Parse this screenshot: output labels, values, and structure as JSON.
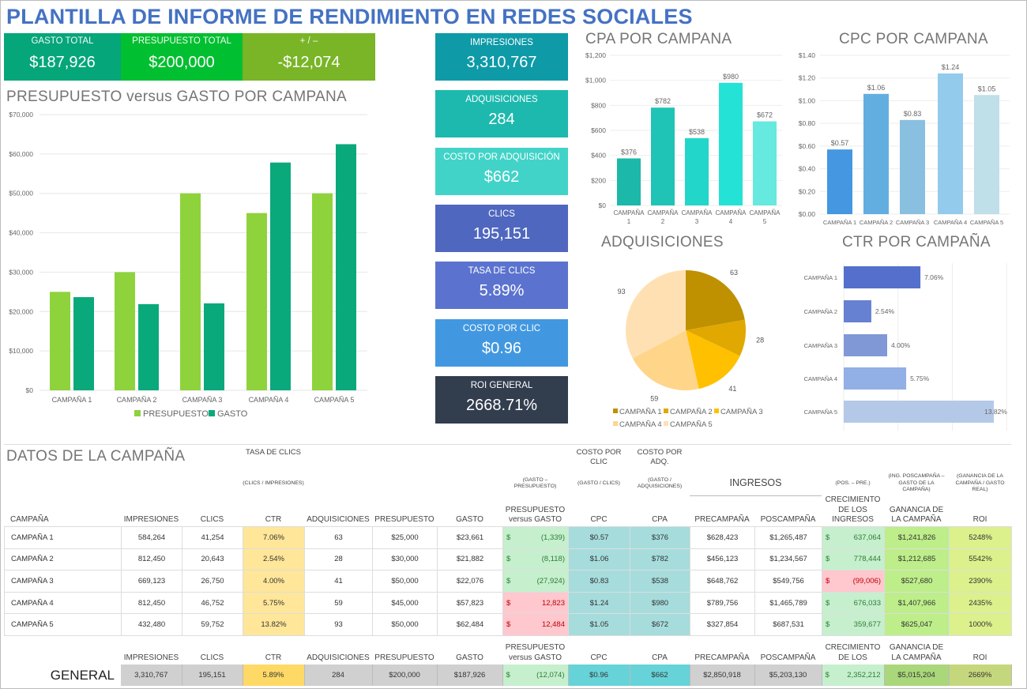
{
  "title": "PLANTILLA DE INFORME DE RENDIMIENTO EN REDES SOCIALES",
  "summary": [
    {
      "label": "GASTO TOTAL",
      "value": "$187,926",
      "color": "#05a67a"
    },
    {
      "label": "PRESUPUESTO TOTAL",
      "value": "$200,000",
      "color": "#00bf30"
    },
    {
      "label": "+ / –",
      "value": "-$12,074",
      "color": "#79b527"
    }
  ],
  "metrics": [
    {
      "label": "IMPRESIONES",
      "value": "3,310,767",
      "color": "#0e9aa7"
    },
    {
      "label": "ADQUISICIONES",
      "value": "284",
      "color": "#1db9ae"
    },
    {
      "label": "COSTO POR ADQUISICIÓN",
      "value": "$662",
      "color": "#42d3c8"
    },
    {
      "label": "CLICS",
      "value": "195,151",
      "color": "#4f67bf"
    },
    {
      "label": "TASA DE CLICS",
      "value": "5.89%",
      "color": "#5b73cf"
    },
    {
      "label": "COSTO POR CLIC",
      "value": "$0.96",
      "color": "#4298e0"
    },
    {
      "label": "ROI GENERAL",
      "value": "2668.71%",
      "color": "#323d4e"
    }
  ],
  "chart_data": [
    {
      "type": "bar",
      "title": "PRESUPUESTO versus GASTO POR CAMPANA",
      "categories": [
        "CAMPAÑA 1",
        "CAMPAÑA 2",
        "CAMPAÑA 3",
        "CAMPAÑA 4",
        "CAMPAÑA 5"
      ],
      "series": [
        {
          "name": "PRESUPUESTO",
          "values": [
            25000,
            30000,
            50000,
            45000,
            50000
          ],
          "color": "#8ed33c"
        },
        {
          "name": "GASTO",
          "values": [
            23661,
            21882,
            22076,
            57823,
            62484
          ],
          "color": "#0aa97b"
        }
      ],
      "ylim": [
        0,
        70000
      ],
      "yticks": [
        "$0",
        "$10,000",
        "$20,000",
        "$30,000",
        "$40,000",
        "$50,000",
        "$60,000",
        "$70,000"
      ],
      "grid": true,
      "legend": "bottom"
    },
    {
      "type": "bar",
      "title": "CPA POR CAMPANA",
      "categories": [
        "CAMPAÑA 1",
        "CAMPAÑA 2",
        "CAMPAÑA 3",
        "CAMPAÑA 4",
        "CAMPAÑA 5"
      ],
      "values": [
        376,
        782,
        538,
        980,
        672
      ],
      "labels": [
        "$376",
        "$782",
        "$538",
        "$980",
        "$672"
      ],
      "colors": [
        "#1cb8aa",
        "#1fc4b6",
        "#22d6c9",
        "#25e2d6",
        "#66e9de"
      ],
      "ylim": [
        0,
        1200
      ],
      "yticks": [
        "$0",
        "$200",
        "$400",
        "$600",
        "$800",
        "$1,000",
        "$1,200"
      ],
      "grid": true
    },
    {
      "type": "bar",
      "title": "CPC POR CAMPANA",
      "categories": [
        "CAMPAÑA 1",
        "CAMPAÑA 2",
        "CAMPAÑA 3",
        "CAMPAÑA 4",
        "CAMPAÑA 5"
      ],
      "values": [
        0.57,
        1.06,
        0.83,
        1.24,
        1.05
      ],
      "labels": [
        "$0.57",
        "$1.06",
        "$0.83",
        "$1.24",
        "$1.05"
      ],
      "colors": [
        "#4497e0",
        "#63aee0",
        "#89c0e0",
        "#93cbed",
        "#bfdfe9"
      ],
      "ylim": [
        0,
        1.4
      ],
      "yticks": [
        "$0.00",
        "$0.20",
        "$0.40",
        "$0.60",
        "$0.80",
        "$1.00",
        "$1.20",
        "$1.40"
      ],
      "grid": true
    },
    {
      "type": "pie",
      "title": "ADQUISICIONES",
      "categories": [
        "CAMPAÑA 1",
        "CAMPAÑA 2",
        "CAMPAÑA 3",
        "CAMPAÑA 4",
        "CAMPAÑA 5"
      ],
      "values": [
        63,
        28,
        41,
        59,
        93
      ],
      "colors": [
        "#bf9000",
        "#e0a800",
        "#ffc000",
        "#ffd58a",
        "#ffe0b3"
      ],
      "legend": "bottom"
    },
    {
      "type": "bar",
      "orientation": "horizontal",
      "title": "CTR POR CAMPAÑA",
      "categories": [
        "CAMPAÑA 1",
        "CAMPAÑA 2",
        "CAMPAÑA 3",
        "CAMPAÑA 4",
        "CAMPAÑA 5"
      ],
      "values": [
        7.06,
        2.54,
        4.0,
        5.75,
        13.82
      ],
      "labels": [
        "7.06%",
        "2.54%",
        "4.00%",
        "5.75%",
        "13.82%"
      ],
      "colors": [
        "#5470cc",
        "#6680d2",
        "#8099d6",
        "#92afe6",
        "#b4c9e8"
      ],
      "xlim": [
        0,
        15
      ],
      "grid": true
    }
  ],
  "table": {
    "section_title": "DATOS DE LA CAMPAÑA",
    "ingresos_label": "INGRESOS",
    "columns": [
      {
        "top": "",
        "note": "",
        "head": "CAMPAÑA"
      },
      {
        "top": "",
        "note": "",
        "head": "IMPRESIONES"
      },
      {
        "top": "",
        "note": "",
        "head": "CLICS"
      },
      {
        "top": "TASA DE CLICS",
        "note": "(CLICS / IMPRESIONES)",
        "head": "CTR"
      },
      {
        "top": "",
        "note": "",
        "head": "ADQUISICIONES"
      },
      {
        "top": "",
        "note": "",
        "head": "PRESUPUESTO"
      },
      {
        "top": "",
        "note": "",
        "head": "GASTO"
      },
      {
        "top": "",
        "note": "(GASTO – PRESUPUESTO)",
        "head": "PRESUPUESTO versus GASTO"
      },
      {
        "top": "COSTO POR CLIC",
        "note": "(GASTO / CLICS)",
        "head": "CPC"
      },
      {
        "top": "COSTO POR ADQ.",
        "note": "(GASTO / ADQUISICIONES)",
        "head": "CPA"
      },
      {
        "top": "",
        "note": "",
        "head": "PRECAMPAÑA"
      },
      {
        "top": "",
        "note": "",
        "head": "POSCAMPAÑA"
      },
      {
        "top": "",
        "note": "(POS. – PRE.)",
        "head": "CRECIMIENTO DE LOS INGRESOS"
      },
      {
        "top": "",
        "note": "(ING. POSCAMPAÑA – GASTO DE LA CAMPAÑA)",
        "head": "GANANCIA DE LA CAMPAÑA"
      },
      {
        "top": "",
        "note": "(GANANCIA DE LA CAMPAÑA / GASTO REAL)",
        "head": "ROI"
      }
    ],
    "rows": [
      [
        "CAMPAÑA 1",
        "584,264",
        "41,254",
        "7.06%",
        "63",
        "$25,000",
        "$23,661",
        {
          "sym": "$",
          "val": "(1,339)"
        },
        "$0.57",
        "$376",
        "$628,423",
        "$1,265,487",
        {
          "sym": "$",
          "val": "637,064"
        },
        "$1,241,826",
        "5248%"
      ],
      [
        "CAMPAÑA 2",
        "812,450",
        "20,643",
        "2.54%",
        "28",
        "$30,000",
        "$21,882",
        {
          "sym": "$",
          "val": "(8,118)"
        },
        "$1.06",
        "$782",
        "$456,123",
        "$1,234,567",
        {
          "sym": "$",
          "val": "778,444"
        },
        "$1,212,685",
        "5542%"
      ],
      [
        "CAMPAÑA 3",
        "669,123",
        "26,750",
        "4.00%",
        "41",
        "$50,000",
        "$22,076",
        {
          "sym": "$",
          "val": "(27,924)"
        },
        "$0.83",
        "$538",
        "$648,762",
        "$549,756",
        {
          "sym": "$",
          "val": "(99,006)"
        },
        "$527,680",
        "2390%"
      ],
      [
        "CAMPAÑA 4",
        "812,450",
        "46,752",
        "5.75%",
        "59",
        "$45,000",
        "$57,823",
        {
          "sym": "$",
          "val": "12,823"
        },
        "$1.24",
        "$980",
        "$789,756",
        "$1,465,789",
        {
          "sym": "$",
          "val": "676,033"
        },
        "$1,407,966",
        "2435%"
      ],
      [
        "CAMPAÑA 5",
        "432,480",
        "59,752",
        "13.82%",
        "93",
        "$50,000",
        "$62,484",
        {
          "sym": "$",
          "val": "12,484"
        },
        "$1.05",
        "$672",
        "$327,854",
        "$687,531",
        {
          "sym": "$",
          "val": "359,677"
        },
        "$625,047",
        "1000%"
      ]
    ],
    "footer_heads": [
      "",
      "IMPRESIONES",
      "CLICS",
      "CTR",
      "ADQUISICIONES",
      "PRESUPUESTO",
      "GASTO",
      "PRESUPUESTO versus GASTO",
      "CPC",
      "CPA",
      "PRECAMPAÑA",
      "POSCAMPAÑA",
      "CRECIMIENTO DE LOS",
      "GANANCIA DE LA CAMPAÑA",
      "ROI"
    ],
    "general": [
      "GENERAL",
      "3,310,767",
      "195,151",
      "5.89%",
      "284",
      "$200,000",
      "$187,926",
      {
        "sym": "$",
        "val": "(12,074)"
      },
      "$0.96",
      "$662",
      "$2,850,918",
      "$5,203,130",
      {
        "sym": "$",
        "val": "2,352,212"
      },
      "$5,015,204",
      "2669%"
    ]
  }
}
